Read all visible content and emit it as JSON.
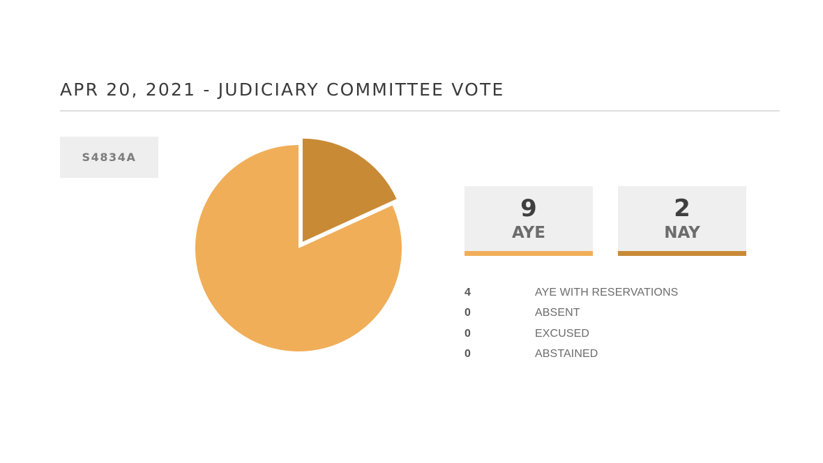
{
  "title": "APR 20, 2021 - JUDICIARY COMMITTEE VOTE",
  "bill": {
    "id": "S4834A"
  },
  "tally": {
    "aye": {
      "count": "9",
      "label": "AYE",
      "color": "#f0ae59"
    },
    "nay": {
      "count": "2",
      "label": "NAY",
      "color": "#c98a36"
    }
  },
  "breakdown": [
    {
      "count": "4",
      "label": "AYE WITH RESERVATIONS"
    },
    {
      "count": "0",
      "label": "ABSENT"
    },
    {
      "count": "0",
      "label": "EXCUSED"
    },
    {
      "count": "0",
      "label": "ABSTAINED"
    }
  ],
  "chart_data": {
    "type": "pie",
    "categories": [
      "AYE",
      "NAY"
    ],
    "values": [
      9,
      2
    ],
    "colors": [
      "#f0ae59",
      "#c98a36"
    ],
    "exploded": "NAY"
  }
}
